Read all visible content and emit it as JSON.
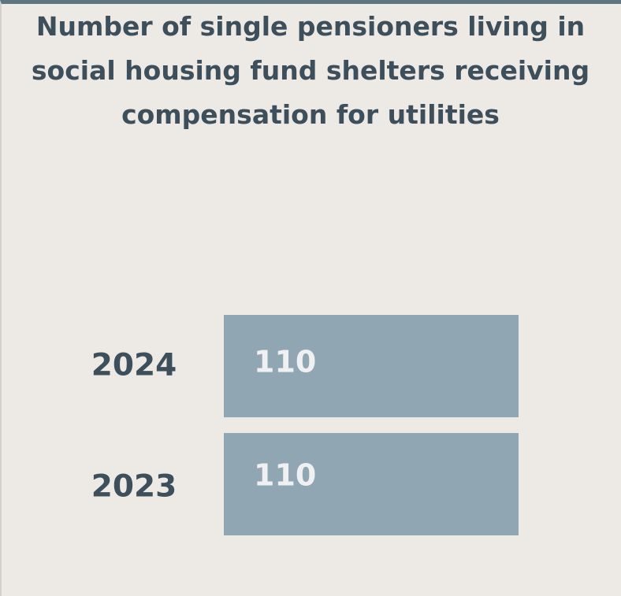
{
  "chart_data": {
    "type": "bar",
    "orientation": "horizontal",
    "title": "Number of single pensioners living in social housing fund shelters receiving compensation for utilities",
    "categories": [
      "2024",
      "2023"
    ],
    "values": [
      110,
      110
    ],
    "color": "#91a6b3"
  }
}
